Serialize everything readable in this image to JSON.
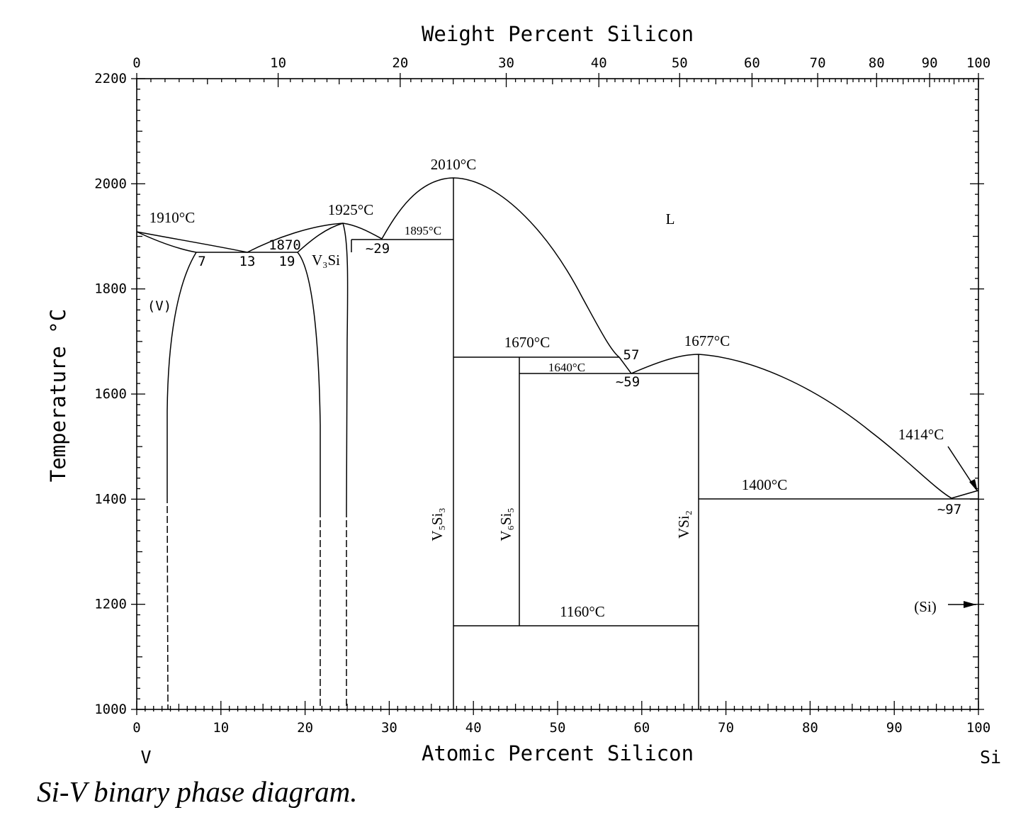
{
  "title": "Weight Percent Silicon",
  "caption": "Si-V binary phase diagram.",
  "axes": {
    "bottom_label": "Atomic Percent Silicon",
    "top_label": "Weight Percent Silicon",
    "left_label": "Temperature °C",
    "left_end_label": "V",
    "right_end_label": "Si",
    "bottom_ticks": [
      "0",
      "10",
      "20",
      "30",
      "40",
      "50",
      "60",
      "70",
      "80",
      "90",
      "100"
    ],
    "top_ticks": [
      "0",
      "10",
      "20",
      "30",
      "40",
      "50",
      "60",
      "70",
      "80",
      "90",
      "100"
    ],
    "left_ticks": [
      "1000",
      "1200",
      "1400",
      "1600",
      "1800",
      "2000",
      "2200"
    ]
  },
  "phases": {
    "liquid": "L",
    "v_solid": "(V)",
    "si_solid": "(Si)",
    "v3si": "V₃Si",
    "v5si3": "V₅Si₃",
    "v6si5": "V₆Si₅",
    "vsi2": "VSi₂"
  },
  "temperatures": {
    "t1910": "1910°C",
    "t1925": "1925°C",
    "t2010": "2010°C",
    "t1895": "1895°C",
    "t1870": "1870",
    "t1670": "1670°C",
    "t1640": "1640°C",
    "t1677": "1677°C",
    "t1414": "1414°C",
    "t1400": "1400°C",
    "t1160": "1160°C"
  },
  "compositions": {
    "c7": "7",
    "c13": "13",
    "c19": "19",
    "c29": "~29",
    "c57": "57",
    "c59": "~59",
    "c97": "~97"
  },
  "chart_data": {
    "type": "phase-diagram",
    "x_unit": "atomic percent Si",
    "y_unit": "°C",
    "xlim": [
      0,
      100
    ],
    "ylim": [
      1000,
      2200
    ],
    "weight_percent_ticks_at_atomic": [
      [
        0,
        0
      ],
      [
        10,
        16.8
      ],
      [
        20,
        31.3
      ],
      [
        30,
        43.9
      ],
      [
        40,
        54.9
      ],
      [
        50,
        64.5
      ],
      [
        60,
        73.1
      ],
      [
        70,
        80.9
      ],
      [
        80,
        87.9
      ],
      [
        90,
        94.2
      ],
      [
        100,
        100
      ]
    ],
    "invariants": [
      {
        "type": "melting",
        "phase": "V",
        "x": 0,
        "T": 1910
      },
      {
        "type": "eutectic",
        "x": 13,
        "T": 1870,
        "between": [
          7,
          19
        ]
      },
      {
        "type": "congruent",
        "phase": "V3Si",
        "x": 24.4,
        "T": 1925
      },
      {
        "type": "eutectic",
        "x": 29,
        "T": 1895
      },
      {
        "type": "congruent",
        "phase": "V5Si3",
        "x": 37.5,
        "T": 2010
      },
      {
        "type": "peritectic",
        "phase": "V6Si5",
        "x": 45.5,
        "T": 1670,
        "liquid_x": 57
      },
      {
        "type": "eutectic",
        "x": 59,
        "T": 1640
      },
      {
        "type": "congruent",
        "phase": "VSi2",
        "x": 66.7,
        "T": 1677
      },
      {
        "type": "eutectic",
        "x": 97,
        "T": 1400
      },
      {
        "type": "melting",
        "phase": "Si",
        "x": 100,
        "T": 1414
      },
      {
        "type": "transition",
        "T": 1160,
        "between": [
          37.5,
          66.7
        ]
      }
    ],
    "liquidus": [
      [
        [
          0,
          1910
        ],
        [
          6,
          1885
        ],
        [
          13,
          1870
        ]
      ],
      [
        [
          13,
          1870
        ],
        [
          18,
          1900
        ],
        [
          24.4,
          1925
        ],
        [
          29,
          1895
        ]
      ],
      [
        [
          29,
          1895
        ],
        [
          31,
          1940
        ],
        [
          35,
          2000
        ],
        [
          37.5,
          2010
        ],
        [
          42,
          1990
        ],
        [
          48,
          1900
        ],
        [
          53,
          1780
        ],
        [
          57,
          1670
        ],
        [
          59,
          1640
        ]
      ],
      [
        [
          59,
          1640
        ],
        [
          63,
          1665
        ],
        [
          66.7,
          1677
        ],
        [
          72,
          1665
        ],
        [
          82,
          1600
        ],
        [
          92,
          1480
        ],
        [
          97,
          1400
        ]
      ],
      [
        [
          97,
          1400
        ],
        [
          100,
          1414
        ]
      ]
    ],
    "solidus": [
      [
        [
          0,
          1910
        ],
        [
          4.5,
          1850
        ],
        [
          7,
          1870
        ]
      ],
      [
        [
          3.5,
          1000
        ],
        [
          3.9,
          1400
        ],
        [
          5,
          1700
        ],
        [
          7,
          1870
        ]
      ],
      [
        [
          19,
          1870
        ],
        [
          21,
          1800
        ],
        [
          21.7,
          1500
        ],
        [
          21.7,
          1000
        ]
      ],
      [
        [
          24.4,
          1925
        ],
        [
          25,
          1700
        ],
        [
          25,
          1000
        ]
      ],
      [
        [
          25.8,
          1895
        ],
        [
          29,
          1895
        ]
      ]
    ],
    "lines": [
      {
        "from": [
          7,
          1870
        ],
        "to": [
          19,
          1870
        ],
        "T": 1870
      },
      {
        "from": [
          25.8,
          1895
        ],
        "to": [
          37.5,
          1895
        ],
        "T": 1895
      },
      {
        "from": [
          37.5,
          1670
        ],
        "to": [
          57,
          1670
        ],
        "T": 1670
      },
      {
        "from": [
          45.5,
          1640
        ],
        "to": [
          66.7,
          1640
        ],
        "T": 1640
      },
      {
        "from": [
          66.7,
          1400
        ],
        "to": [
          100,
          1400
        ],
        "T": 1400
      },
      {
        "from": [
          37.5,
          1160
        ],
        "to": [
          66.7,
          1160
        ],
        "T": 1160
      },
      {
        "from": [
          37.5,
          1000
        ],
        "to": [
          37.5,
          2010
        ],
        "phase": "V5Si3"
      },
      {
        "from": [
          45.5,
          1160
        ],
        "to": [
          45.5,
          1670
        ],
        "phase": "V6Si5"
      },
      {
        "from": [
          66.7,
          1000
        ],
        "to": [
          66.7,
          1677
        ],
        "phase": "VSi2"
      }
    ]
  }
}
